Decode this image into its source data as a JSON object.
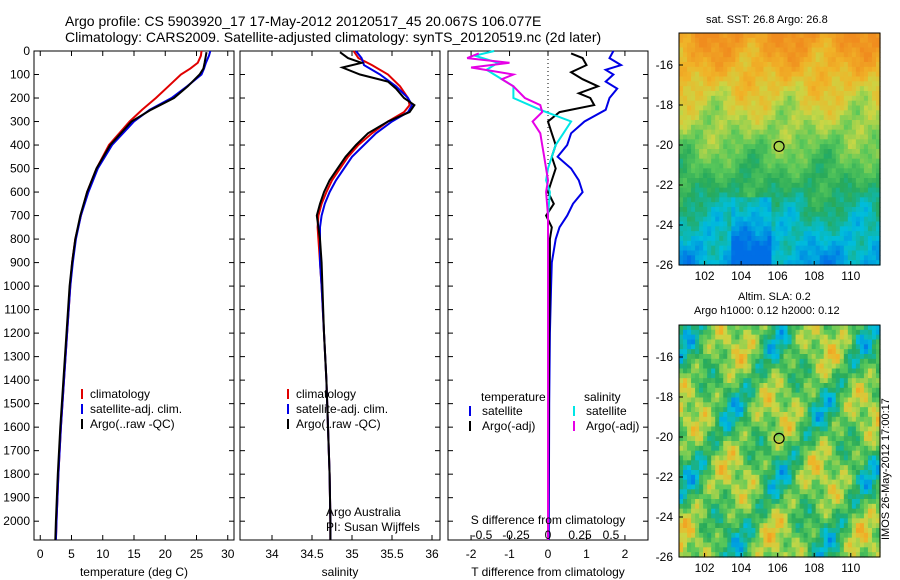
{
  "header": {
    "line1": "Argo profile: CS 5903920_17 17-May-2012 20120517_45 20.067S 106.077E",
    "line2": "Climatology: CARS2009. Satellite-adjusted climatology: synTS_20120519.nc (2d later)"
  },
  "footer_stamp": "IMOS 26-May-2012 17:00:17",
  "colors": {
    "climatology": "#e00000",
    "satellite": "#0000e6",
    "argo": "#000000",
    "sat_sal": "#00e6e6",
    "argo_sal": "#e600e6"
  },
  "chart_data": [
    {
      "type": "line",
      "id": "temperature",
      "xlabel": "temperature (deg C)",
      "xlim": [
        -1,
        31
      ],
      "xticks": [
        0,
        5,
        10,
        15,
        20,
        25,
        30
      ],
      "ylim": [
        0,
        2080
      ],
      "yticks": [
        0,
        100,
        200,
        300,
        400,
        500,
        600,
        700,
        800,
        900,
        1000,
        1100,
        1200,
        1300,
        1400,
        1500,
        1600,
        1700,
        1800,
        1900,
        2000
      ],
      "y_reversed": true,
      "legend": [
        "climatology",
        "satellite-adj. clim.",
        "Argo(..raw -QC)"
      ],
      "series": [
        {
          "name": "climatology",
          "color": "#e00000",
          "depth": [
            0,
            20,
            50,
            75,
            100,
            150,
            200,
            250,
            300,
            400,
            500,
            600,
            700,
            800,
            900,
            1000,
            1200,
            1400,
            1600,
            1800,
            2000,
            2080
          ],
          "values": [
            25.8,
            25.7,
            25.2,
            24,
            22.5,
            20.5,
            18.5,
            16.3,
            14.3,
            11,
            9,
            7.5,
            6.5,
            5.6,
            5.1,
            4.8,
            4.3,
            3.8,
            3.3,
            2.9,
            2.6,
            2.5
          ]
        },
        {
          "name": "satellite-adj. clim.",
          "color": "#0000e6",
          "depth": [
            0,
            20,
            50,
            75,
            100,
            150,
            200,
            250,
            300,
            400,
            500,
            600,
            700,
            800,
            900,
            1000,
            1200,
            1400,
            1600,
            1800,
            2000,
            2080
          ],
          "values": [
            27.2,
            27,
            26.5,
            26.2,
            25.8,
            23.5,
            21,
            17.5,
            15,
            11.5,
            9.2,
            7.7,
            6.5,
            5.7,
            5.2,
            4.8,
            4.3,
            3.8,
            3.3,
            2.9,
            2.6,
            2.5
          ]
        },
        {
          "name": "Argo(..raw -QC)",
          "color": "#000000",
          "depth": [
            5,
            20,
            50,
            75,
            100,
            150,
            200,
            250,
            300,
            400,
            500,
            600,
            700,
            800,
            900,
            1000,
            1200,
            1400,
            1600,
            1800,
            2000,
            2080
          ],
          "values": [
            26.6,
            26.5,
            26.3,
            26.1,
            25.5,
            23.6,
            21.4,
            17.7,
            14.6,
            11.2,
            9,
            7.5,
            6.4,
            5.6,
            5.1,
            4.7,
            4.2,
            3.7,
            3.2,
            2.8,
            2.5,
            2.4
          ]
        }
      ]
    },
    {
      "type": "line",
      "id": "salinity",
      "xlabel": "salinity",
      "xlim": [
        33.6,
        36.1
      ],
      "xticks": [
        34,
        34.5,
        35,
        35.5,
        36
      ],
      "ylim": [
        0,
        2080
      ],
      "y_reversed": true,
      "legend": [
        "climatology",
        "satellite-adj. clim.",
        "Argo(..raw -QC)"
      ],
      "annotation": [
        "Argo Australia",
        "PI: Susan Wijffels"
      ],
      "series": [
        {
          "name": "climatology",
          "color": "#e00000",
          "depth": [
            0,
            30,
            60,
            100,
            150,
            200,
            230,
            260,
            300,
            350,
            400,
            450,
            500,
            550,
            600,
            650,
            700,
            750,
            800,
            900,
            1000,
            1200,
            1400,
            1600,
            1800,
            2000,
            2080
          ],
          "values": [
            35.02,
            35.08,
            35.25,
            35.45,
            35.6,
            35.7,
            35.72,
            35.65,
            35.45,
            35.25,
            35.08,
            34.95,
            34.85,
            34.75,
            34.68,
            34.62,
            34.58,
            34.57,
            34.58,
            34.6,
            34.62,
            34.65,
            34.68,
            34.7,
            34.72,
            34.73,
            34.73
          ]
        },
        {
          "name": "satellite-adj. clim.",
          "color": "#0000e6",
          "depth": [
            0,
            30,
            60,
            100,
            150,
            200,
            230,
            260,
            300,
            350,
            400,
            450,
            500,
            550,
            600,
            650,
            700,
            750,
            800,
            900,
            1000,
            1200,
            1400,
            1600,
            1800,
            2000,
            2080
          ],
          "values": [
            35.05,
            35.12,
            35.15,
            35.35,
            35.55,
            35.7,
            35.75,
            35.7,
            35.5,
            35.3,
            35.15,
            35,
            34.9,
            34.8,
            34.72,
            34.66,
            34.62,
            34.6,
            34.6,
            34.6,
            34.62,
            34.65,
            34.68,
            34.7,
            34.72,
            34.73,
            34.73
          ]
        },
        {
          "name": "Argo(..raw -QC)",
          "color": "#000000",
          "depth": [
            5,
            30,
            50,
            70,
            100,
            130,
            160,
            200,
            230,
            260,
            300,
            350,
            400,
            450,
            500,
            550,
            600,
            650,
            700,
            750,
            800,
            900,
            1000,
            1200,
            1400,
            1600,
            1800,
            2000,
            2080
          ],
          "values": [
            34.85,
            34.95,
            35.12,
            34.88,
            35.1,
            35.45,
            35.55,
            35.65,
            35.78,
            35.72,
            35.45,
            35.2,
            35.05,
            34.92,
            34.82,
            34.72,
            34.65,
            34.6,
            34.56,
            34.58,
            34.6,
            34.62,
            34.63,
            34.65,
            34.68,
            34.7,
            34.72,
            34.73,
            34.73
          ]
        }
      ]
    },
    {
      "type": "line",
      "id": "difference",
      "xlabel": "T difference from climatology",
      "top_axis_label": "S difference from climatology",
      "top_xticks": [
        "-0.5",
        "-0.25",
        "0",
        "0.25",
        "0.5"
      ],
      "xlim": [
        -2.6,
        2.6
      ],
      "xticks": [
        -2,
        -1,
        0,
        1,
        2
      ],
      "ylim": [
        0,
        2080
      ],
      "y_reversed": true,
      "zero_line": "dotted",
      "legend_headers": [
        "temperature",
        "salinity"
      ],
      "legend": [
        "satellite",
        "Argo(-adj)",
        "satellite",
        "Argo(-adj)"
      ],
      "series": [
        {
          "name": "satellite",
          "group": "temperature",
          "color": "#0000e6",
          "depth": [
            0,
            30,
            60,
            80,
            100,
            130,
            160,
            200,
            250,
            300,
            350,
            400,
            450,
            500,
            550,
            600,
            650,
            700,
            750,
            800,
            900,
            1000,
            1200,
            1500,
            2000,
            2080
          ],
          "values": [
            1.7,
            1.6,
            1.9,
            1.5,
            1.7,
            1.5,
            1.8,
            1.6,
            1.5,
            0.95,
            0.6,
            0.5,
            0.25,
            0.6,
            0.8,
            0.9,
            0.65,
            0.5,
            0.3,
            0.2,
            0.1,
            0.08,
            0.05,
            0.03,
            0.02,
            0.02
          ]
        },
        {
          "name": "Argo(-adj)",
          "group": "temperature",
          "color": "#000000",
          "depth": [
            10,
            30,
            60,
            90,
            120,
            150,
            180,
            200,
            230,
            260,
            300,
            350,
            400,
            450,
            500,
            550,
            600,
            650,
            700,
            750,
            800,
            900,
            1000,
            1200,
            1500,
            2000,
            2080
          ],
          "values": [
            0.6,
            0.9,
            1.0,
            0.6,
            0.9,
            1.3,
            0.8,
            1.1,
            1.2,
            0.3,
            0.0,
            0.1,
            0.2,
            0.1,
            0.2,
            0.1,
            0.0,
            0.15,
            -0.05,
            0.1,
            0.05,
            0.05,
            0.05,
            0.03,
            0.02,
            0.0,
            0.0
          ]
        },
        {
          "name": "satellite",
          "group": "salinity",
          "color": "#00e6e6",
          "depth": [
            0,
            20,
            50,
            80,
            100,
            150,
            200,
            250,
            300,
            350,
            400,
            450,
            500,
            550,
            600,
            700,
            800,
            1000,
            1500,
            2000,
            2080
          ],
          "values": [
            -1.4,
            -1.9,
            -1.3,
            -1.6,
            -1.4,
            -0.9,
            -0.9,
            -0.2,
            0.6,
            0.4,
            0.2,
            0.1,
            0.0,
            -0.05,
            0.05,
            0.0,
            0.0,
            0.0,
            0.0,
            0.0,
            0.0
          ]
        },
        {
          "name": "Argo(-adj)",
          "group": "salinity",
          "color": "#e600e6",
          "depth": [
            10,
            30,
            50,
            70,
            100,
            120,
            150,
            200,
            230,
            260,
            300,
            350,
            400,
            450,
            500,
            550,
            600,
            700,
            800,
            1000,
            1500,
            2000,
            2080
          ],
          "values": [
            -1.8,
            -2.1,
            -1.0,
            -2.0,
            -0.9,
            -1.2,
            -0.9,
            -0.6,
            -0.2,
            -0.15,
            -0.4,
            -0.2,
            -0.15,
            -0.1,
            -0.05,
            0.0,
            -0.05,
            0.0,
            0.0,
            0.0,
            0.0,
            0.0,
            0.0
          ]
        }
      ]
    },
    {
      "type": "heatmap",
      "id": "sst_map",
      "title": "sat. SST: 26.8  Argo: 26.8",
      "xticks": [
        "102",
        "104",
        "106",
        "108",
        "110"
      ],
      "yticks": [
        "-16",
        "-18",
        "-20",
        "-22",
        "-24",
        "-26"
      ],
      "xlim": [
        100.6,
        111.6
      ],
      "ylim": [
        -26,
        -14.4
      ],
      "marker": {
        "lon": 106.077,
        "lat": -20.067
      }
    },
    {
      "type": "heatmap",
      "id": "sla_map",
      "title": "Altim. SLA: 0.2",
      "subtitle": "Argo h1000: 0.12 h2000: 0.12",
      "xticks": [
        "102",
        "104",
        "106",
        "108",
        "110"
      ],
      "yticks": [
        "-16",
        "-18",
        "-20",
        "-22",
        "-24",
        "-26"
      ],
      "xlim": [
        100.6,
        111.6
      ],
      "ylim": [
        -26,
        -14.4
      ],
      "marker": {
        "lon": 106.077,
        "lat": -20.067
      }
    }
  ]
}
